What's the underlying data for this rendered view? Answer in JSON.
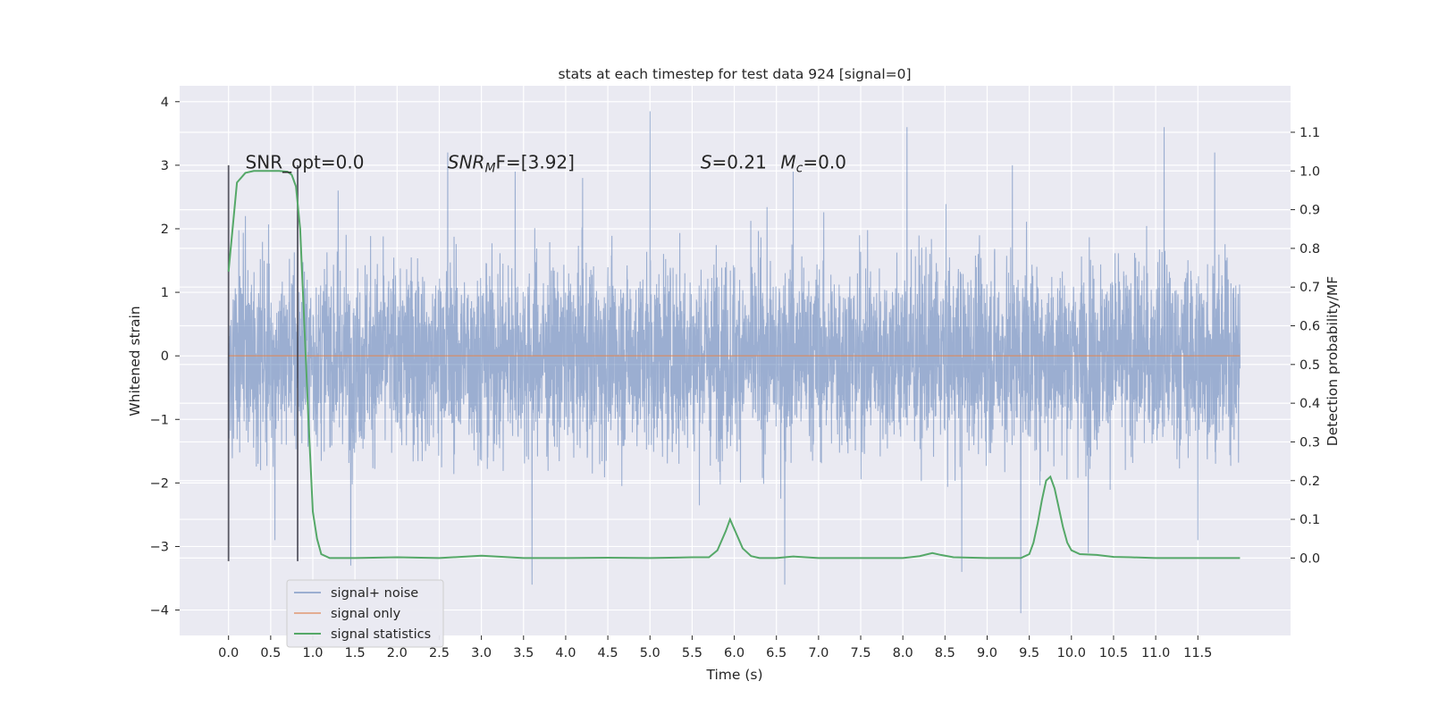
{
  "chart_data": {
    "type": "line",
    "title": "stats at each timestep for test data 924 [signal=0]",
    "xlabel": "Time (s)",
    "ylabel": "Whitened strain",
    "y2label": "Detection probability/MF",
    "xlim": [
      -0.58,
      12.6
    ],
    "ylim": [
      -4.4,
      4.25
    ],
    "y2lim": [
      -0.2,
      1.22
    ],
    "x_ticks": [
      "0.0",
      "0.5",
      "1.0",
      "1.5",
      "2.0",
      "2.5",
      "3.0",
      "3.5",
      "4.0",
      "4.5",
      "5.0",
      "5.5",
      "6.0",
      "6.5",
      "7.0",
      "7.5",
      "8.0",
      "8.5",
      "9.0",
      "9.5",
      "10.0",
      "10.5",
      "11.0",
      "11.5"
    ],
    "y_ticks": [
      "4",
      "3",
      "2",
      "1",
      "0",
      "−1",
      "−2",
      "−3",
      "−4"
    ],
    "y2_ticks": [
      "1.1",
      "1.0",
      "0.9",
      "0.8",
      "0.7",
      "0.6",
      "0.5",
      "0.4",
      "0.3",
      "0.2",
      "0.1",
      "0.0"
    ],
    "grid": true,
    "legend_position": "lower-left",
    "series": [
      {
        "name": "signal+ noise",
        "color": "#4c72b0",
        "alpha": 0.5,
        "description_values": "dense noise from 0 to 12 s, roughly within -2.5..2.5, peak 3.85 near 5.0 s, min -4.05 near 9.4 s",
        "x_range": [
          0,
          12
        ],
        "peaks": [
          [
            0.2,
            2.2
          ],
          [
            1.3,
            2.6
          ],
          [
            2.6,
            3.2
          ],
          [
            3.4,
            2.9
          ],
          [
            4.2,
            2.8
          ],
          [
            5.0,
            3.85
          ],
          [
            6.7,
            2.9
          ],
          [
            8.05,
            3.6
          ],
          [
            9.3,
            3.0
          ],
          [
            11.1,
            3.6
          ],
          [
            11.7,
            3.2
          ]
        ],
        "troughs": [
          [
            0.55,
            -2.9
          ],
          [
            1.45,
            -3.3
          ],
          [
            3.6,
            -3.6
          ],
          [
            6.6,
            -3.6
          ],
          [
            8.7,
            -3.4
          ],
          [
            9.4,
            -4.05
          ],
          [
            10.2,
            -3.1
          ],
          [
            11.5,
            -2.9
          ]
        ]
      },
      {
        "name": "signal only",
        "color": "#dd8452",
        "values_desc": "flat at 0",
        "x": [
          0,
          12
        ],
        "y": [
          0,
          0
        ]
      },
      {
        "name": "signal statistics",
        "color": "#55a868",
        "axis": "right",
        "x": [
          0.0,
          0.1,
          0.2,
          0.3,
          0.4,
          0.5,
          0.6,
          0.7,
          0.75,
          0.8,
          0.85,
          0.9,
          0.95,
          1.0,
          1.05,
          1.1,
          1.2,
          1.5,
          2.0,
          2.5,
          3.0,
          3.5,
          4.0,
          4.5,
          5.0,
          5.5,
          5.7,
          5.8,
          5.9,
          5.95,
          6.0,
          6.1,
          6.2,
          6.3,
          6.5,
          6.7,
          7.0,
          7.5,
          8.0,
          8.2,
          8.35,
          8.45,
          8.6,
          9.0,
          9.4,
          9.5,
          9.55,
          9.6,
          9.65,
          9.7,
          9.75,
          9.8,
          9.85,
          9.9,
          9.95,
          10.0,
          10.1,
          10.3,
          10.5,
          10.7,
          11.0,
          11.5,
          12.0
        ],
        "y": [
          0.74,
          0.97,
          0.995,
          1.0,
          1.0,
          1.0,
          1.0,
          0.998,
          0.99,
          0.96,
          0.85,
          0.6,
          0.35,
          0.12,
          0.05,
          0.01,
          0.0,
          0.0,
          0.002,
          0.0,
          0.006,
          0.0,
          0.0,
          0.001,
          0.0,
          0.002,
          0.002,
          0.02,
          0.07,
          0.1,
          0.075,
          0.025,
          0.005,
          0.0,
          0.0,
          0.004,
          0.0,
          0.0,
          0.0,
          0.005,
          0.013,
          0.008,
          0.002,
          0.0,
          0.0,
          0.01,
          0.04,
          0.09,
          0.15,
          0.2,
          0.21,
          0.18,
          0.13,
          0.08,
          0.04,
          0.02,
          0.01,
          0.008,
          0.003,
          0.002,
          0.0,
          0.0,
          0.0
        ]
      }
    ],
    "vertical_lines": [
      {
        "x": 0.0,
        "y": [
          -3.23,
          3.0
        ]
      },
      {
        "x": 0.82,
        "y": [
          -3.23,
          3.0
        ]
      }
    ],
    "annotations": [
      {
        "text": "SNR_opt=0.0",
        "x": 0.2,
        "y": 2.95
      },
      {
        "text_main": "SNR",
        "text_sub": "M",
        "text_tail": "F=[3.92]",
        "x": 2.6,
        "y": 2.95
      },
      {
        "text_main": "S",
        "text_tail": "=0.21",
        "x": 5.6,
        "y": 2.95
      },
      {
        "text_main": "M",
        "text_sub": "c",
        "text_tail": "=0.0",
        "x": 6.55,
        "y": 2.95
      }
    ]
  }
}
